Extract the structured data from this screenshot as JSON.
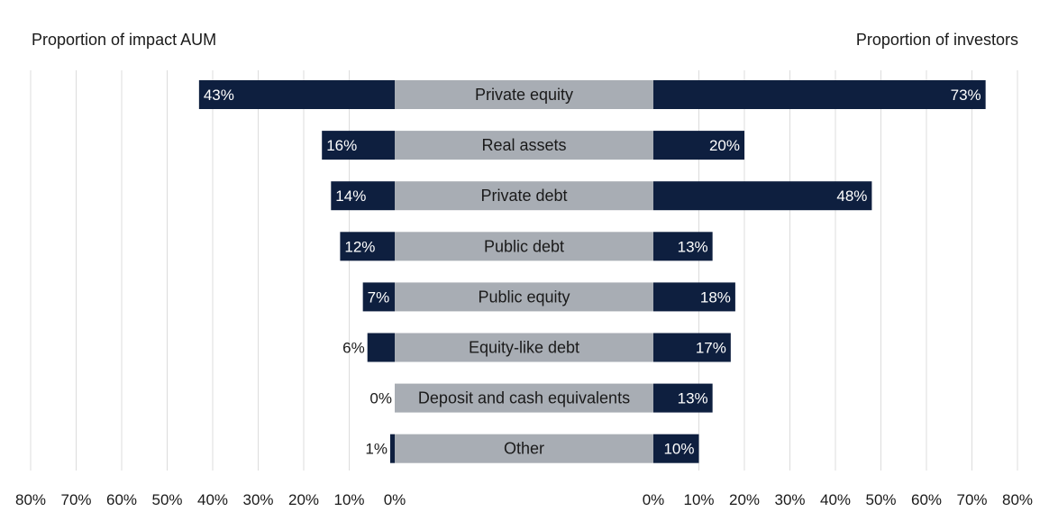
{
  "chart_data": {
    "type": "bar",
    "left_title": "Proportion of impact AUM",
    "right_title": "Proportion of investors",
    "categories": [
      "Private equity",
      "Real assets",
      "Private debt",
      "Public debt",
      "Public equity",
      "Equity-like debt",
      "Deposit and cash equivalents",
      "Other"
    ],
    "series": [
      {
        "name": "Proportion of impact AUM",
        "values": [
          43,
          16,
          14,
          12,
          7,
          6,
          0,
          1
        ],
        "labels": [
          "43%",
          "16%",
          "14%",
          "12%",
          "7%",
          "6%",
          "0%",
          "1%"
        ]
      },
      {
        "name": "Proportion of investors",
        "values": [
          73,
          20,
          48,
          13,
          18,
          17,
          13,
          10
        ],
        "labels": [
          "73%",
          "20%",
          "48%",
          "13%",
          "18%",
          "17%",
          "13%",
          "10%"
        ]
      }
    ],
    "left_ticks": [
      "80%",
      "70%",
      "60%",
      "50%",
      "40%",
      "30%",
      "20%",
      "10%",
      "0%"
    ],
    "right_ticks": [
      "0%",
      "10%",
      "20%",
      "30%",
      "40%",
      "50%",
      "60%",
      "70%",
      "80%"
    ],
    "xlim": [
      0,
      80
    ],
    "grid": true,
    "colors": {
      "bar": "#0e1f3f",
      "category_band": "#a8adb4",
      "grid": "#dcdcdc",
      "text": "#1a1a1a"
    }
  }
}
